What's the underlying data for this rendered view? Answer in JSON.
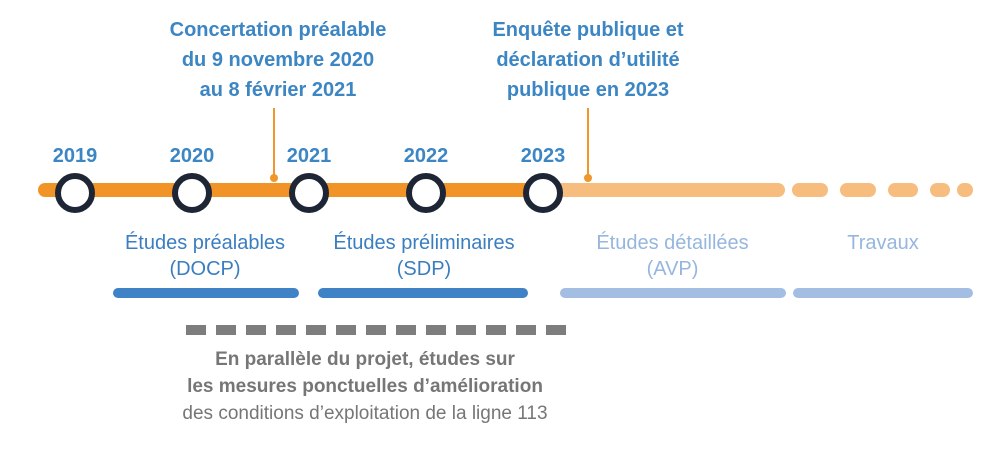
{
  "callouts": [
    {
      "lines": [
        "Concertation préalable",
        "du 9 novembre 2020",
        "au 8 février 2021"
      ]
    },
    {
      "lines": [
        "Enquête publique et",
        "déclaration d’utilité",
        "publique en 2023"
      ]
    }
  ],
  "years": [
    "2019",
    "2020",
    "2021",
    "2022",
    "2023"
  ],
  "phases": [
    {
      "lines": [
        "Études préalables",
        "(DOCP)"
      ],
      "status": "done"
    },
    {
      "lines": [
        "Études préliminaires",
        "(SDP)"
      ],
      "status": "done"
    },
    {
      "lines": [
        "Études détaillées",
        "(AVP)"
      ],
      "status": "future"
    },
    {
      "lines": [
        "Travaux"
      ],
      "status": "future"
    }
  ],
  "parallel": {
    "bold_lines": [
      "En parallèle du projet, études sur",
      "les mesures ponctuelles d’amélioration"
    ],
    "regular_line": "des conditions d’exploitation de la ligne 113"
  },
  "colors": {
    "timeline_orange": "#f29327",
    "timeline_light_orange": "#f6bd7f",
    "text_blue": "#3c86c4",
    "light_blue": "#96b6de",
    "milestone_dark": "#1e2535",
    "gray": "#7d7d7d"
  }
}
